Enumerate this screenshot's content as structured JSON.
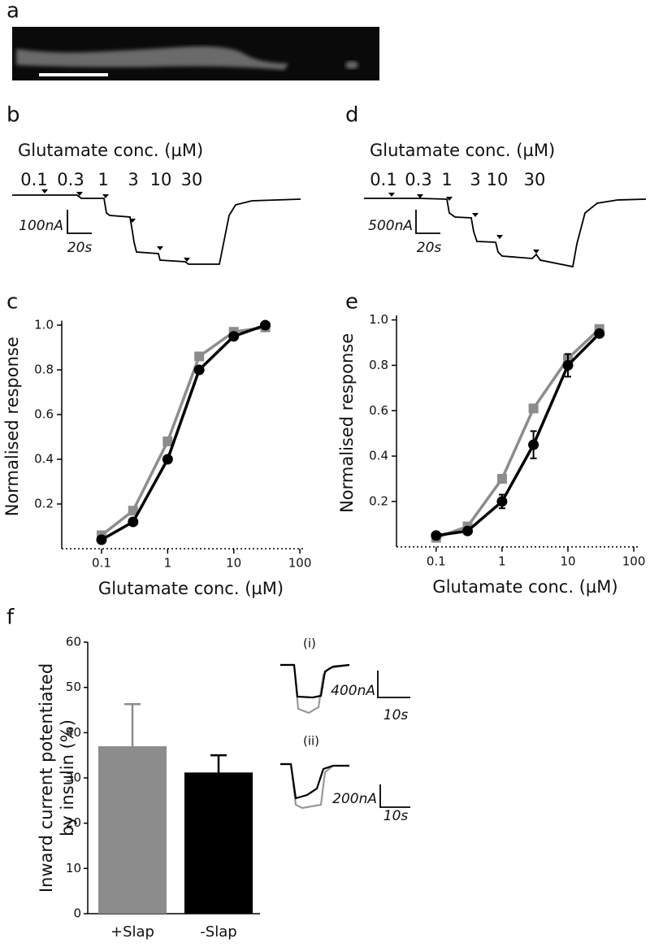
{
  "panel_labels": [
    "a",
    "b",
    "c",
    "d",
    "e",
    "f"
  ],
  "traces": {
    "b": {
      "title": "Glutamate conc. (µM)",
      "concentrations": [
        "0.1",
        "0.3",
        "1",
        "3",
        "10",
        "30"
      ],
      "current_scale": "100nA",
      "time_scale": "20s"
    },
    "d": {
      "title": "Glutamate conc. (µM)",
      "concentrations": [
        "0.1",
        "0.3",
        "1",
        "3",
        "10",
        "30"
      ],
      "current_scale": "500nA",
      "time_scale": "20s"
    },
    "insets": [
      {
        "label": "(i)",
        "current_scale": "400nA",
        "time_scale": "10s"
      },
      {
        "label": "(ii)",
        "current_scale": "200nA",
        "time_scale": "10s"
      }
    ]
  },
  "chart_data": [
    {
      "type": "line",
      "x": [
        0.1,
        0.3,
        1,
        3,
        10,
        30
      ],
      "log_x": true,
      "xlabel": "Glutamate conc. (µM)",
      "ylabel": "Normalised response",
      "xlim": [
        0.025,
        115
      ],
      "xticks": [
        0.1,
        1,
        10,
        100
      ],
      "ylim": [
        0,
        1.02
      ],
      "yticks": [
        0.2,
        0.4,
        0.6,
        0.8,
        {
          "value": 1,
          "label": "1.0"
        }
      ],
      "series": [
        {
          "color": "#8c8c8c",
          "marker": "square",
          "values": [
            0.06,
            0.17,
            0.48,
            0.86,
            0.97,
            0.99
          ]
        },
        {
          "color": "#000000",
          "marker": "circle",
          "values": [
            0.04,
            0.12,
            0.4,
            0.8,
            0.95,
            1.0
          ]
        }
      ]
    },
    {
      "type": "line",
      "x": [
        0.1,
        0.3,
        1,
        3,
        10,
        30
      ],
      "log_x": true,
      "xlabel": "Glutamate conc. (µM)",
      "ylabel": "Normalised response",
      "xlim": [
        0.025,
        115
      ],
      "xticks": [
        0.1,
        1,
        10,
        100
      ],
      "ylim": [
        0,
        1.02
      ],
      "yticks": [
        0.2,
        0.4,
        0.6,
        0.8,
        {
          "value": 1,
          "label": "1.0"
        }
      ],
      "series": [
        {
          "color": "#8c8c8c",
          "marker": "square",
          "values": [
            0.04,
            0.09,
            0.3,
            0.61,
            0.83,
            0.96
          ]
        },
        {
          "color": "#000000",
          "marker": "circle",
          "values": [
            0.05,
            0.07,
            0.2,
            0.45,
            0.8,
            0.94
          ],
          "errors": [
            0.01,
            0.01,
            0.03,
            0.06,
            0.05,
            0.01
          ]
        }
      ]
    },
    {
      "type": "bar",
      "categories": [
        "+Slap",
        "-Slap"
      ],
      "values": [
        37,
        31.2
      ],
      "errors": [
        9.3,
        3.8
      ],
      "colors": [
        "#8c8c8c",
        "#000000"
      ],
      "ylabel": [
        "Inward current potentiated",
        "by insulin (%)"
      ],
      "ylim": [
        0,
        60
      ],
      "yticks": [
        0,
        10,
        20,
        30,
        40,
        50,
        60
      ]
    }
  ]
}
